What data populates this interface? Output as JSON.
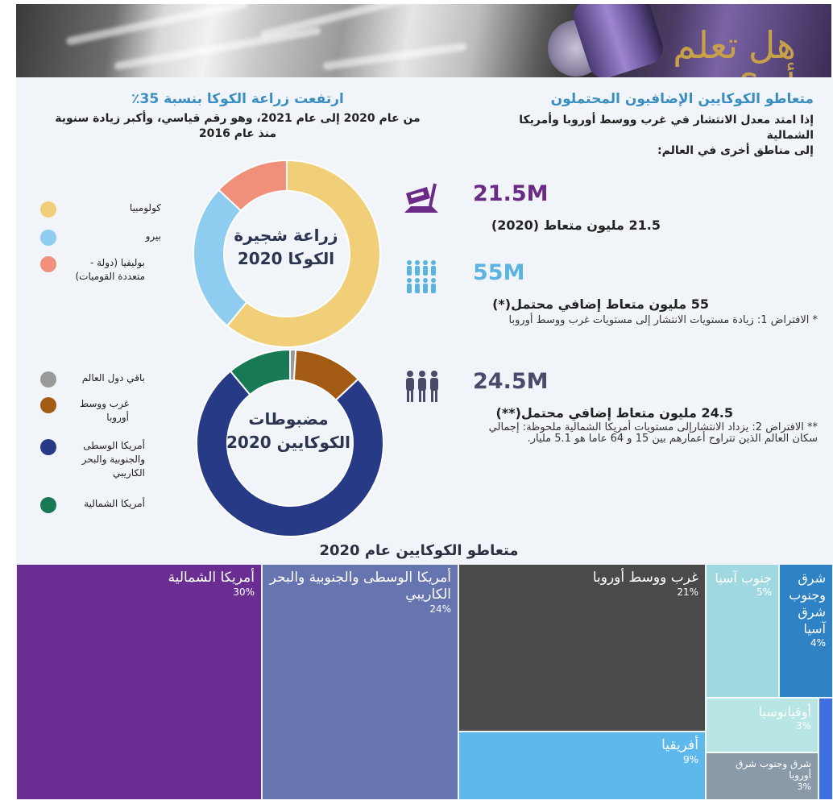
{
  "banner": {
    "title": "هل تعلم أن؟"
  },
  "left_panel": {
    "title": "ارتفعت زراعة الكوكا بنسبة 35٪",
    "subtitle": "من عام 2020 إلى عام 2021، وهو رقم قياسي، وأكبر زيادة سنوية منذ عام 2016"
  },
  "right_panel": {
    "title": "متعاطو الكوكايين الإضافيون المحتملون",
    "subtitle_line1": "إذا امتد معدل الانتشار في غرب ووسط أوروبا وأمريكا الشمالية",
    "subtitle_line2": "إلى مناطق أخرى في العالم:",
    "stats": [
      {
        "value": "21.5M",
        "desc": "21.5 مليون متعاط (2020)",
        "note": "",
        "color": "#6b2a86",
        "icon": "cocaine-razor-icon"
      },
      {
        "value": "55M",
        "desc": "55 مليون متعاط إضافي محتمل(*)",
        "note": "* الافتراض 1: زيادة مستويات الانتشار إلى مستويات غرب ووسط أوروبا",
        "color": "#5ab3e0",
        "icon": "people-group-icon"
      },
      {
        "value": "24.5M",
        "desc": "24.5 مليون متعاط إضافي محتمل(**)",
        "note": "** الافتراض 2: يزداد الانتشارإلى مستويات أمريكا الشمالية ملحوظة: إجمالي سكان العالم الذين تتراوح أعمارهم بين 15 و 64 عاما هو 5.1 مليار.",
        "color": "#4a4a6a",
        "icon": "people-trio-icon"
      }
    ]
  },
  "chart_data": [
    {
      "type": "pie",
      "title": "زراعة شجيرة الكوكا 2020",
      "categories": [
        "كولومبيا",
        "بيرو",
        "بوليفيا (دولة - متعددة القوميات)"
      ],
      "values": [
        61,
        26,
        13
      ],
      "colors": [
        "#f0cf78",
        "#8fcdf0",
        "#f0907a"
      ]
    },
    {
      "type": "pie",
      "title": "مضبوطات الكوكايين 2020",
      "categories": [
        "باقي دول العالم",
        "غرب ووسط أوروبا",
        "أمريكا الوسطى والجنوبية والبحر الكاريبي",
        "أمريكا الشمالية"
      ],
      "values": [
        1,
        12,
        76,
        11
      ],
      "colors": [
        "#9a9a9a",
        "#a35a12",
        "#273a86",
        "#177a55"
      ]
    },
    {
      "type": "treemap",
      "title": "متعاطو الكوكايين عام 2020",
      "categories": [
        "أمريكا الشمالية",
        "أمريكا الوسطى والجنوبية والبحر الكاريبي",
        "غرب ووسط أوروبا",
        "أفريقيا",
        "جنوب آسيا",
        "شرق وجنوب شرق آسيا",
        "أوقيانوسيا",
        "شرق وجنوب شرق أوروبا"
      ],
      "values": [
        30,
        24,
        21,
        9,
        5,
        4,
        3,
        3
      ],
      "labels": [
        "30%",
        "24%",
        "21%",
        "9%",
        "5%",
        "4%",
        "3%",
        "3%"
      ],
      "colors": [
        "#6a2d92",
        "#6675b0",
        "#4a4a4a",
        "#5fb8ec",
        "#9fd8e0",
        "#2f82c4",
        "#b7e6e4",
        "#8a9aa8"
      ]
    }
  ]
}
